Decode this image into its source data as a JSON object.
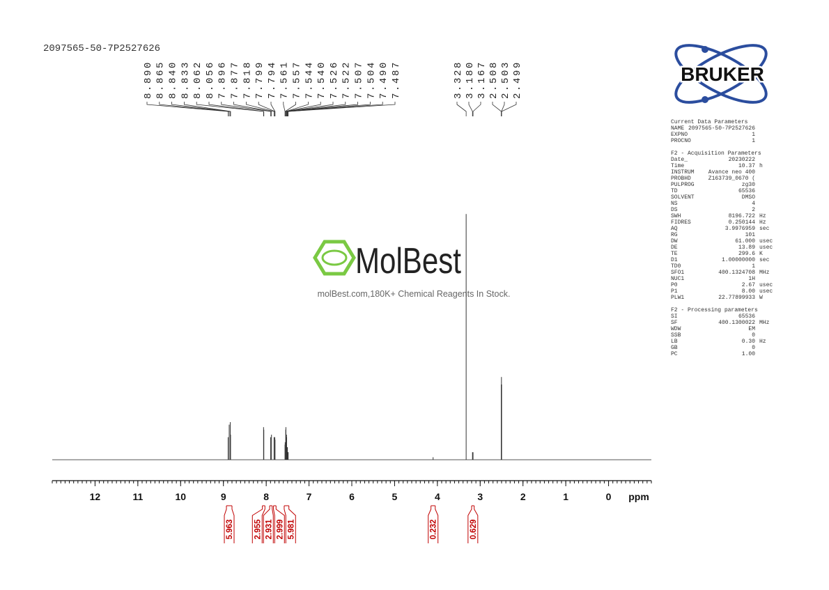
{
  "header": {
    "sample_name": "2097565-50-7P2527626"
  },
  "chart_data": {
    "type": "nmr_spectrum",
    "x_label": "ppm",
    "xlim": [
      13,
      -1
    ],
    "xticks": [
      12,
      11,
      10,
      9,
      8,
      7,
      6,
      5,
      4,
      3,
      2,
      1,
      0
    ],
    "ylim": [
      0,
      100
    ],
    "peak_label_groups": [
      [
        {
          "value": 8.89,
          "label": "8.890",
          "height": 9
        },
        {
          "value": 8.865,
          "label": "8.865",
          "height": 14
        },
        {
          "value": 8.84,
          "label": "8.840",
          "height": 15
        },
        {
          "value": 8.833,
          "label": "8.833",
          "height": 10
        },
        {
          "value": 8.062,
          "label": "8.062",
          "height": 13
        },
        {
          "value": 8.056,
          "label": "8.056",
          "height": 12
        },
        {
          "value": 7.896,
          "label": "7.896",
          "height": 9
        },
        {
          "value": 7.877,
          "label": "7.877",
          "height": 10
        },
        {
          "value": 7.818,
          "label": "7.818",
          "height": 9
        },
        {
          "value": 7.799,
          "label": "7.799",
          "height": 9
        },
        {
          "value": 7.794,
          "label": "7.794",
          "height": 8
        },
        {
          "value": 7.561,
          "label": "7.561",
          "height": 6
        },
        {
          "value": 7.557,
          "label": "7.557",
          "height": 7
        },
        {
          "value": 7.544,
          "label": "7.544",
          "height": 12
        },
        {
          "value": 7.54,
          "label": "7.540",
          "height": 13
        },
        {
          "value": 7.526,
          "label": "7.526",
          "height": 10
        },
        {
          "value": 7.522,
          "label": "7.522",
          "height": 9
        },
        {
          "value": 7.507,
          "label": "7.507",
          "height": 5
        },
        {
          "value": 7.504,
          "label": "7.504",
          "height": 5
        },
        {
          "value": 7.49,
          "label": "7.490",
          "height": 3
        },
        {
          "value": 7.487,
          "label": "7.487",
          "height": 3
        }
      ],
      [
        {
          "value": 3.328,
          "label": "3.328",
          "height": 98
        },
        {
          "value": 3.18,
          "label": "3.180",
          "height": 3
        },
        {
          "value": 3.167,
          "label": "3.167",
          "height": 3
        },
        {
          "value": 2.508,
          "label": "2.508",
          "height": 30
        },
        {
          "value": 2.503,
          "label": "2.503",
          "height": 33
        },
        {
          "value": 2.499,
          "label": "2.499",
          "height": 30
        }
      ]
    ],
    "other_peaks": [
      {
        "ppm": 4.1,
        "height": 1
      }
    ],
    "integrals": [
      {
        "value": 5.963,
        "from": 8.93,
        "to": 8.8
      },
      {
        "value": 2.955,
        "from": 8.09,
        "to": 8.03
      },
      {
        "value": 2.931,
        "from": 7.92,
        "to": 7.86
      },
      {
        "value": 2.999,
        "from": 7.83,
        "to": 7.77
      },
      {
        "value": 5.981,
        "from": 7.58,
        "to": 7.47
      },
      {
        "value": 0.232,
        "from": 4.15,
        "to": 4.05
      },
      {
        "value": 0.629,
        "from": 3.2,
        "to": 3.14
      }
    ]
  },
  "watermark": {
    "brand": "MolBest",
    "tagline": "molBest.com,180K+ Chemical Reagents In Stock."
  },
  "logo": {
    "text": "BRUKER"
  },
  "parameters": [
    {
      "title": "Current Data Parameters",
      "rows": [
        [
          "NAME",
          "2097565-50-7P2527626"
        ],
        [
          "EXPNO",
          "1"
        ],
        [
          "PROCNO",
          "1"
        ]
      ]
    },
    {
      "title": "F2 - Acquisition Parameters",
      "rows": [
        [
          "Date_",
          "20230222"
        ],
        [
          "Time",
          "10.37",
          "h"
        ],
        [
          "INSTRUM",
          "Avance neo 400"
        ],
        [
          "PROBHD",
          "Z163739_0670 ("
        ],
        [
          "PULPROG",
          "zg30"
        ],
        [
          "TD",
          "65536"
        ],
        [
          "SOLVENT",
          "DMSO"
        ],
        [
          "NS",
          "4"
        ],
        [
          "DS",
          "2"
        ],
        [
          "SWH",
          "8196.722",
          "Hz"
        ],
        [
          "FIDRES",
          "0.250144",
          "Hz"
        ],
        [
          "AQ",
          "3.9976959",
          "sec"
        ],
        [
          "RG",
          "101"
        ],
        [
          "DW",
          "61.000",
          "usec"
        ],
        [
          "DE",
          "13.89",
          "usec"
        ],
        [
          "TE",
          "299.6",
          "K"
        ],
        [
          "D1",
          "1.00000000",
          "sec"
        ],
        [
          "TD0",
          "1"
        ],
        [
          "SFO1",
          "400.1324708",
          "MHz"
        ],
        [
          "NUC1",
          "1H"
        ],
        [
          "P0",
          "2.67",
          "usec"
        ],
        [
          "P1",
          "8.00",
          "usec"
        ],
        [
          "PLW1",
          "22.77899933",
          "W"
        ]
      ]
    },
    {
      "title": "F2 - Processing parameters",
      "rows": [
        [
          "SI",
          "65536"
        ],
        [
          "SF",
          "400.1300022",
          "MHz"
        ],
        [
          "WDW",
          "EM"
        ],
        [
          "SSB",
          "0"
        ],
        [
          "LB",
          "0.30",
          "Hz"
        ],
        [
          "GB",
          "0"
        ],
        [
          "PC",
          "1.00"
        ]
      ]
    }
  ]
}
